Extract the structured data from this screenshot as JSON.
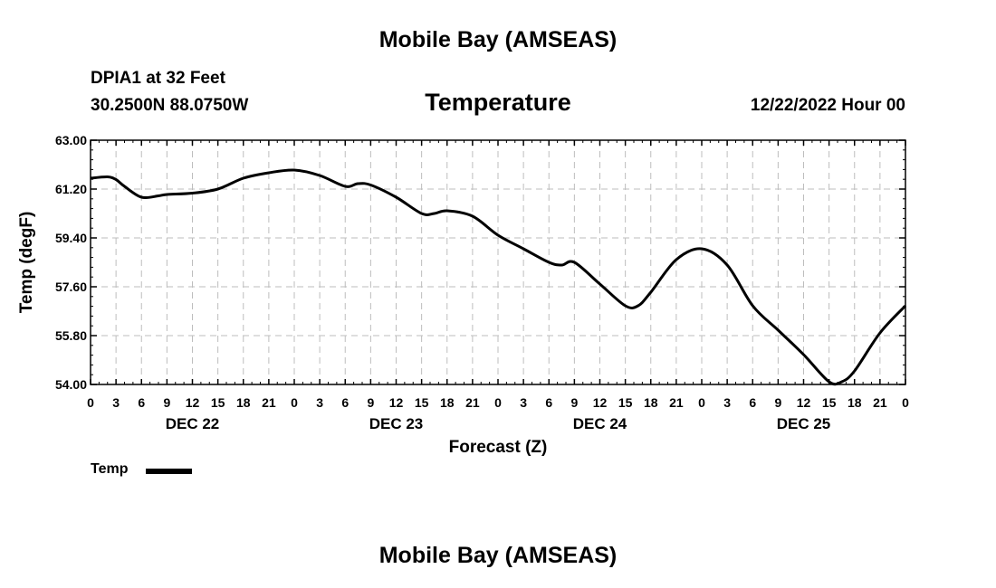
{
  "page_title_top": "Mobile Bay (AMSEAS)",
  "page_title_bottom": "Mobile Bay (AMSEAS)",
  "station": {
    "line1": "DPIA1 at 32 Feet",
    "line2": "30.2500N  88.0750W"
  },
  "chart_title": "Temperature",
  "run_time": "12/22/2022 Hour 00",
  "legend": {
    "label": "Temp",
    "color": "#000000"
  },
  "chart_data": {
    "type": "line",
    "title": "Temperature",
    "xlabel": "Forecast (Z)",
    "ylabel": "Temp (degF)",
    "ylim": [
      54.0,
      63.0
    ],
    "xlim": [
      0,
      96
    ],
    "grid": true,
    "legend_position": "bottom-left",
    "y_ticks": [
      "54.00",
      "55.80",
      "57.60",
      "59.40",
      "61.20",
      "63.00"
    ],
    "x_tick_labels": [
      "0",
      "3",
      "6",
      "9",
      "12",
      "15",
      "18",
      "21",
      "0",
      "3",
      "6",
      "9",
      "12",
      "15",
      "18",
      "21",
      "0",
      "3",
      "6",
      "9",
      "12",
      "15",
      "18",
      "21",
      "0",
      "3",
      "6",
      "9",
      "12",
      "15",
      "18",
      "21",
      "0"
    ],
    "day_labels": [
      {
        "label": "DEC 22",
        "hour": 12
      },
      {
        "label": "DEC 23",
        "hour": 36
      },
      {
        "label": "DEC 24",
        "hour": 60
      },
      {
        "label": "DEC 25",
        "hour": 84
      }
    ],
    "series": [
      {
        "name": "Temp",
        "x": [
          0,
          2,
          3,
          4,
          6,
          8,
          9,
          12,
          15,
          18,
          21,
          24,
          27,
          30,
          31.5,
          33,
          36,
          39,
          40.5,
          42,
          45,
          48,
          51,
          54,
          55.5,
          57,
          60,
          63,
          64.5,
          66,
          69,
          72,
          75,
          78,
          81,
          84,
          87,
          88.5,
          90,
          93,
          96
        ],
        "y": [
          61.6,
          61.65,
          61.55,
          61.3,
          60.9,
          60.95,
          61.0,
          61.05,
          61.2,
          61.6,
          61.8,
          61.9,
          61.7,
          61.3,
          61.4,
          61.35,
          60.9,
          60.3,
          60.3,
          60.4,
          60.2,
          59.5,
          59.0,
          58.5,
          58.4,
          58.5,
          57.7,
          56.9,
          56.9,
          57.4,
          58.6,
          59.0,
          58.4,
          56.9,
          56.0,
          55.1,
          54.1,
          54.1,
          54.5,
          55.9,
          56.9
        ]
      }
    ]
  }
}
